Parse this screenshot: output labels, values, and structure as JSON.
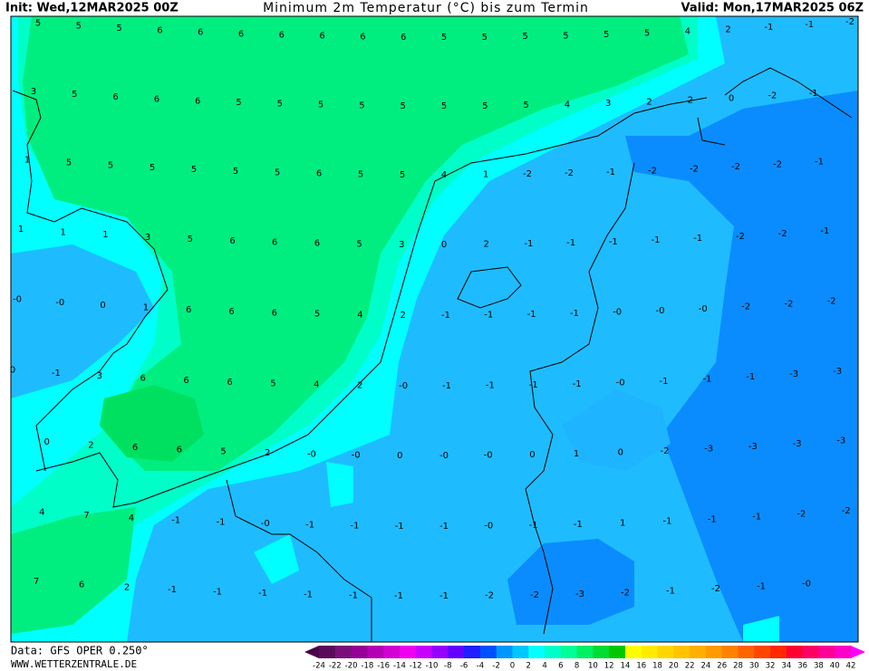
{
  "header": {
    "init": "Init: Wed,12MAR2025 00Z",
    "title": "Minimum 2m Temperatur (°C) bis zum Termin",
    "valid": "Valid: Mon,17MAR2025 06Z"
  },
  "grid": {
    "rows": [
      [
        "5",
        "5",
        "5",
        "6",
        "6",
        "6",
        "6",
        "6",
        "6",
        "6",
        "5",
        "5",
        "5",
        "5",
        "5",
        "5",
        "4",
        "2",
        "-1",
        "-1",
        "-2"
      ],
      [
        "3",
        "5",
        "6",
        "6",
        "6",
        "5",
        "5",
        "5",
        "5",
        "5",
        "5",
        "5",
        "5",
        "4",
        "3",
        "2",
        "2",
        "0",
        "-2",
        "-1"
      ],
      [
        "1",
        "5",
        "5",
        "5",
        "5",
        "5",
        "5",
        "6",
        "5",
        "5",
        "4",
        "1",
        "-2",
        "-2",
        "-1",
        "-2",
        "-2",
        "-2",
        "-2",
        "-1"
      ],
      [
        "1",
        "1",
        "1",
        "3",
        "5",
        "6",
        "6",
        "6",
        "5",
        "3",
        "0",
        "2",
        "-1",
        "-1",
        "-1",
        "-1",
        "-1",
        "-2",
        "-2",
        "-1"
      ],
      [
        "-0",
        "-0",
        "0",
        "1",
        "6",
        "6",
        "6",
        "5",
        "4",
        "2",
        "-1",
        "-1",
        "-1",
        "-1",
        "-0",
        "-0",
        "-0",
        "-2",
        "-2",
        "-2"
      ],
      [
        "0",
        "-1",
        "3",
        "6",
        "6",
        "6",
        "5",
        "4",
        "2",
        "-0",
        "-1",
        "-1",
        "-1",
        "-1",
        "-0",
        "-1",
        "-1",
        "-1",
        "-3",
        "-3"
      ],
      [
        null,
        "0",
        "2",
        "6",
        "6",
        "5",
        "2",
        "-0",
        "-0",
        "0",
        "-0",
        "-0",
        "0",
        "1",
        "0",
        "-2",
        "-3",
        "-3",
        "-3",
        "-3"
      ],
      [
        null,
        "4",
        "7",
        "4",
        "-1",
        "-1",
        "-0",
        "-1",
        "-1",
        "-1",
        "-1",
        "-0",
        "-1",
        "-1",
        "1",
        "-1",
        "-1",
        "-1",
        "-2",
        "-2"
      ],
      [
        null,
        "7",
        "6",
        "2",
        "-1",
        "-1",
        "-1",
        "-1",
        "-1",
        "-1",
        "-1",
        "-2",
        "-2",
        "-3",
        "-2",
        "-1",
        "-2",
        "-1",
        "-0"
      ]
    ]
  },
  "legend": {
    "labels": [
      "-24",
      "-22",
      "-20",
      "-18",
      "-16",
      "-14",
      "-12",
      "-10",
      "-8",
      "-6",
      "-4",
      "-2",
      "0",
      "2",
      "4",
      "6",
      "8",
      "10",
      "12",
      "14",
      "16",
      "18",
      "20",
      "22",
      "24",
      "26",
      "28",
      "30",
      "32",
      "34",
      "36",
      "38",
      "40",
      "42"
    ],
    "colors": [
      "#5a0a5a",
      "#7a0f7a",
      "#960096",
      "#b400b4",
      "#d200d2",
      "#f000f0",
      "#c800ff",
      "#9600ff",
      "#6400ff",
      "#1e1eff",
      "#0050ff",
      "#0096ff",
      "#00c8ff",
      "#00ffff",
      "#00ffc8",
      "#00ff96",
      "#00f064",
      "#00dc32",
      "#00c800",
      "#ffff00",
      "#ffeb00",
      "#ffd700",
      "#ffc300",
      "#ffaf00",
      "#ff9b00",
      "#ff8200",
      "#ff6400",
      "#ff4600",
      "#ff2800",
      "#ff0032",
      "#ff0064",
      "#ff0096",
      "#ff00c8"
    ],
    "under_color": "#4a004a",
    "over_color": "#ff00ff"
  },
  "footer": {
    "data": "Data: GFS OPER 0.250°",
    "site": "WWW.WETTERZENTRALE.DE"
  }
}
